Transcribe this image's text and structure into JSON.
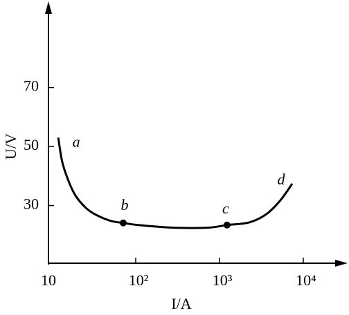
{
  "chart_data": {
    "type": "line",
    "xlabel": "I/A",
    "ylabel": "U/V",
    "xscale": "log",
    "xlim": [
      10,
      20000
    ],
    "ylim": [
      10,
      98
    ],
    "xticks": [
      10,
      {
        "value": 100,
        "label": "10²"
      },
      {
        "value": 1000,
        "label": "10³"
      },
      {
        "value": 10000,
        "label": "10⁴"
      }
    ],
    "yticks": [
      30,
      50,
      70
    ],
    "series": [
      {
        "color": "#000000",
        "x": [
          11.9,
          13.3,
          16.1,
          19.5,
          25.9,
          34.4,
          50.4,
          71,
          107,
          280,
          725,
          1230,
          2270,
          3630,
          5340,
          7380
        ],
        "values": [
          53,
          44.7,
          37.7,
          33,
          29,
          26.7,
          24.8,
          24.1,
          23.4,
          22.5,
          22.5,
          23.4,
          24.3,
          27.1,
          31.8,
          37.4
        ]
      }
    ],
    "points": [
      {
        "label": "a",
        "x": 11.9,
        "y": 53,
        "marker": false
      },
      {
        "label": "b",
        "x": 71,
        "y": 24.1,
        "marker": true
      },
      {
        "label": "c",
        "x": 1230,
        "y": 23.4,
        "marker": true
      },
      {
        "label": "d",
        "x": 7380,
        "y": 37.4,
        "marker": false
      }
    ]
  }
}
